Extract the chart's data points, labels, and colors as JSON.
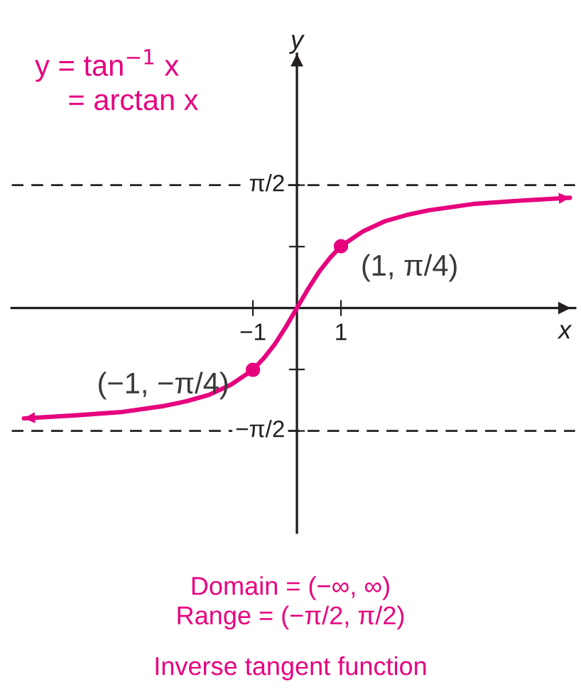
{
  "chart_data": {
    "type": "line",
    "xlabel": "x",
    "ylabel": "y",
    "x": [
      -6.2,
      -5,
      -4,
      -3,
      -2.5,
      -2,
      -1.5,
      -1,
      -0.75,
      -0.5,
      -0.25,
      0,
      0.25,
      0.5,
      0.75,
      1,
      1.5,
      2,
      2.5,
      3,
      4,
      5,
      6.2
    ],
    "series": [
      {
        "color": "#e6007e",
        "values": [
          -1.41,
          -1.37,
          -1.33,
          -1.25,
          -1.19,
          -1.11,
          -0.98,
          -0.79,
          -0.64,
          -0.46,
          -0.24,
          0,
          0.24,
          0.46,
          0.64,
          0.79,
          0.98,
          1.11,
          1.19,
          1.25,
          1.33,
          1.37,
          1.41
        ]
      },
      {
        "type": "scatter",
        "color": "#e6007e",
        "x": [
          -1,
          1
        ],
        "values": [
          -0.79,
          0.79
        ]
      }
    ],
    "xlim": [
      -6.48,
      6.32
    ],
    "ylim": [
      -2.87,
      3.25
    ],
    "xticks": [
      -1,
      1
    ],
    "yticks": [
      {
        "value": -1.5708,
        "label": "−π/2"
      },
      {
        "value": -0.785,
        "label": null
      },
      {
        "value": 0.785,
        "label": null
      },
      {
        "value": 1.5708,
        "label": "π/2"
      }
    ],
    "ref_lines": [
      {
        "axis": "y",
        "value": 1.5708,
        "color": "#231f20",
        "line_style": "dashed"
      },
      {
        "axis": "y",
        "value": -1.5708,
        "color": "#231f20",
        "line_style": "dashed"
      }
    ],
    "grid": false,
    "annotations": [
      "y = tan$^{−1}$ x\n    = arctan x",
      {
        "text": "(1, π/4)",
        "x": 1,
        "y": 0.79
      },
      {
        "text": "(−1, −π/4)",
        "x": -1,
        "y": -0.79
      },
      "Domain = (−∞, ∞)\nRange = (−π/2, π/2)",
      "Inverse tangent function"
    ]
  }
}
